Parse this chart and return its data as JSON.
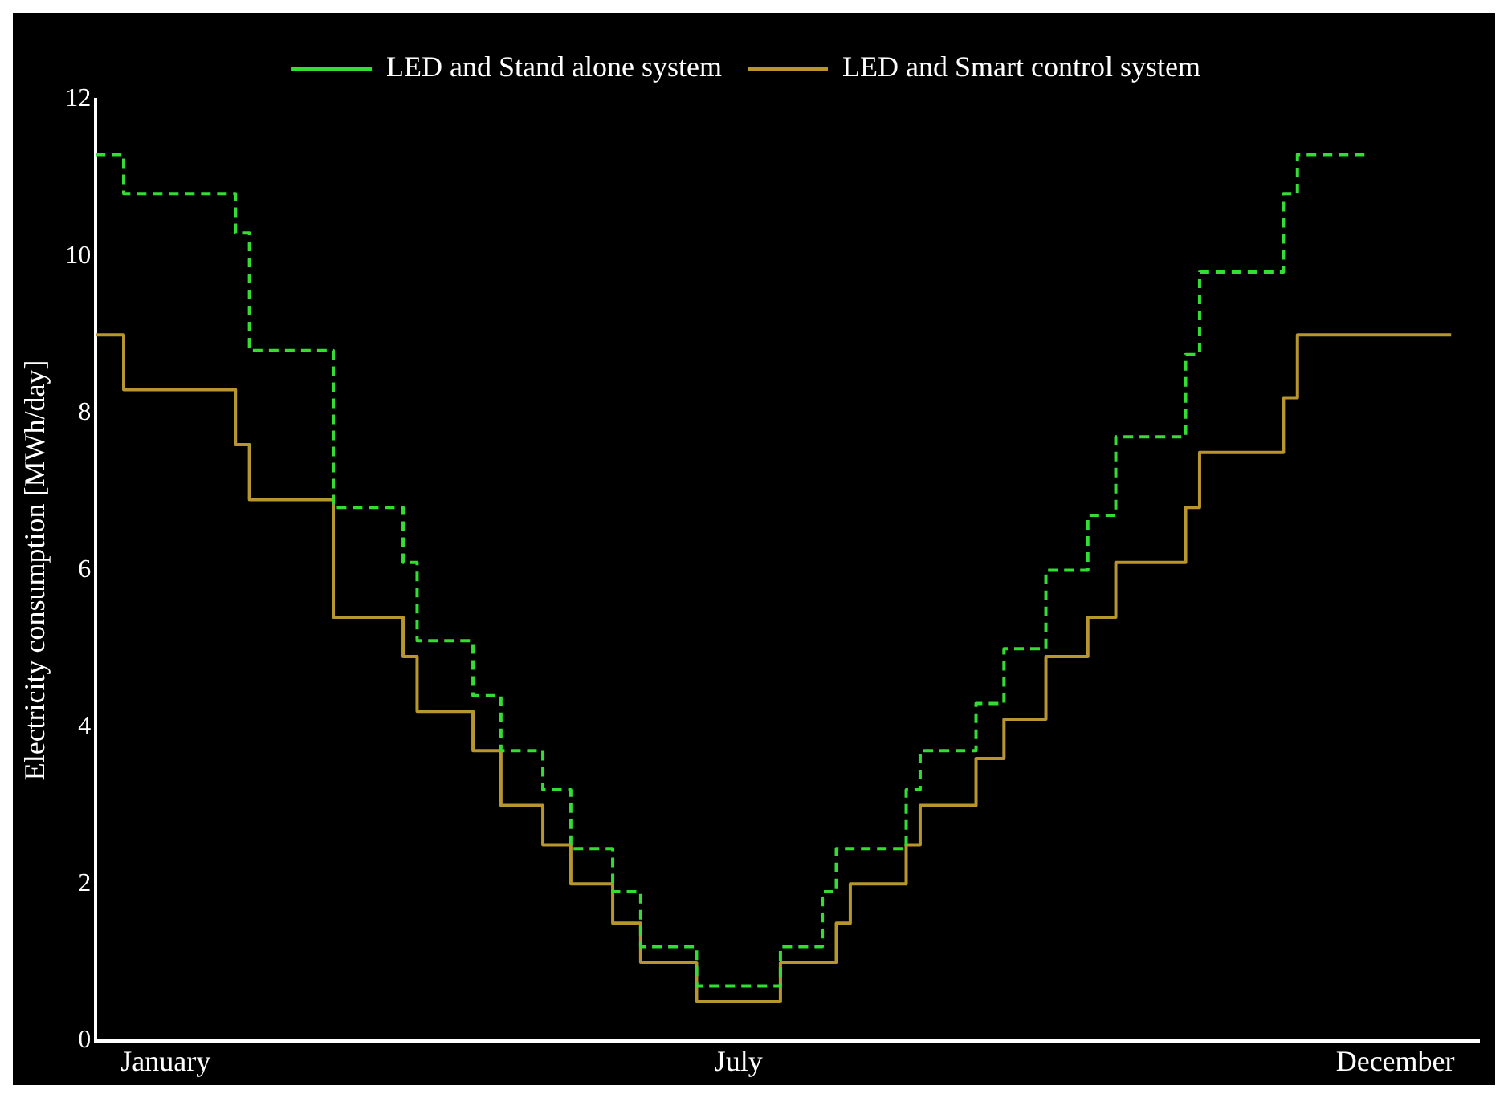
{
  "chart_data": {
    "type": "step",
    "ylabel": "Electricity consumption [MWh/day]",
    "categories": [
      null,
      null,
      null,
      null,
      null,
      "January",
      null,
      null,
      null,
      null,
      null,
      null,
      null,
      null,
      null,
      null,
      null,
      null,
      null,
      null,
      null,
      null,
      null,
      null,
      null,
      null,
      null,
      null,
      null,
      null,
      null,
      null,
      null,
      null,
      null,
      null,
      null,
      null,
      null,
      null,
      null,
      null,
      null,
      null,
      null,
      null,
      "July",
      null,
      null,
      null,
      null,
      null,
      null,
      null,
      null,
      null,
      null,
      null,
      null,
      null,
      null,
      null,
      null,
      null,
      null,
      null,
      null,
      null,
      null,
      null,
      null,
      null,
      null,
      null,
      null,
      null,
      null,
      null,
      null,
      null,
      null,
      null,
      null,
      null,
      null,
      null,
      null,
      null,
      null,
      null,
      null,
      null,
      null,
      "December",
      null,
      null,
      null,
      null,
      null,
      null
    ],
    "ylim": [
      0,
      12
    ],
    "yticks": [
      0,
      2,
      4,
      6,
      8,
      10,
      12
    ],
    "grid": false,
    "legend": "top",
    "marker": "none",
    "series": [
      {
        "name": "LED and Stand alone system",
        "color": "#33dd33",
        "line_style": "dashed",
        "values": [
          11.3,
          11.3,
          10.8,
          10.8,
          10.8,
          10.8,
          10.8,
          10.8,
          10.8,
          10.8,
          10.3,
          8.8,
          8.8,
          8.8,
          8.8,
          8.8,
          8.8,
          6.8,
          6.8,
          6.8,
          6.8,
          6.8,
          6.1,
          5.1,
          5.1,
          5.1,
          5.1,
          4.4,
          4.4,
          3.7,
          3.7,
          3.7,
          3.2,
          3.2,
          2.45,
          2.45,
          2.45,
          1.9,
          1.9,
          1.2,
          1.2,
          1.2,
          1.2,
          0.7,
          0.7,
          0.7,
          0.7,
          0.7,
          0.7,
          1.2,
          1.2,
          1.2,
          1.9,
          2.45,
          2.45,
          2.45,
          2.45,
          2.45,
          3.2,
          3.7,
          3.7,
          3.7,
          3.7,
          4.3,
          4.3,
          5.0,
          5.0,
          5.0,
          6.0,
          6.0,
          6.0,
          6.7,
          6.7,
          7.7,
          7.7,
          7.7,
          7.7,
          7.7,
          8.75,
          9.8,
          9.8,
          9.8,
          9.8,
          9.8,
          9.8,
          10.8,
          11.3,
          11.3,
          11.3,
          11.3,
          11.3,
          11.3,
          null,
          null,
          null,
          null,
          null,
          null,
          null,
          null
        ]
      },
      {
        "name": "LED and Smart control system",
        "color": "#b8962e",
        "line_style": "solid",
        "values": [
          9.0,
          9.0,
          8.3,
          8.3,
          8.3,
          8.3,
          8.3,
          8.3,
          8.3,
          8.3,
          7.6,
          6.9,
          6.9,
          6.9,
          6.9,
          6.9,
          6.9,
          5.4,
          5.4,
          5.4,
          5.4,
          5.4,
          4.9,
          4.2,
          4.2,
          4.2,
          4.2,
          3.7,
          3.7,
          3.0,
          3.0,
          3.0,
          2.5,
          2.5,
          2.0,
          2.0,
          2.0,
          1.5,
          1.5,
          1.0,
          1.0,
          1.0,
          1.0,
          0.5,
          0.5,
          0.5,
          0.5,
          0.5,
          0.5,
          1.0,
          1.0,
          1.0,
          1.0,
          1.5,
          2.0,
          2.0,
          2.0,
          2.0,
          2.5,
          3.0,
          3.0,
          3.0,
          3.0,
          3.6,
          3.6,
          4.1,
          4.1,
          4.1,
          4.9,
          4.9,
          4.9,
          5.4,
          5.4,
          6.1,
          6.1,
          6.1,
          6.1,
          6.1,
          6.8,
          7.5,
          7.5,
          7.5,
          7.5,
          7.5,
          7.5,
          8.2,
          9.0,
          9.0,
          9.0,
          9.0,
          9.0,
          9.0,
          9.0,
          9.0,
          9.0,
          9.0,
          9.0,
          9.0,
          null,
          null
        ]
      }
    ]
  }
}
